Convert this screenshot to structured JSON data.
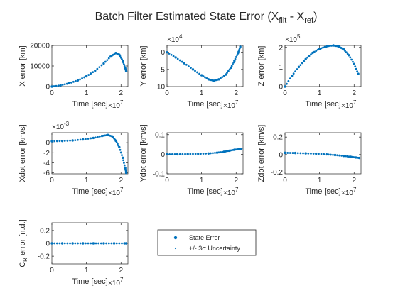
{
  "figure": {
    "title_main": "Batch Filter Estimated State Error (X",
    "title_sub1": "filt",
    "title_mid": " - X",
    "title_sub2": "ref",
    "title_end": ")"
  },
  "legend": {
    "entries": [
      {
        "label": "State Error",
        "color": "#0072BD",
        "marker": "large-dot"
      },
      {
        "label": "+/- 3σ Uncertainty",
        "color": "#0072BD",
        "marker": "small-dot"
      }
    ]
  },
  "chart_data": [
    {
      "type": "scatter",
      "id": "x",
      "ylabel": "X error [km]",
      "xlabel": "Time [sec]",
      "x_exponent": "×10",
      "x_exponent_power": "7",
      "xlim": [
        0,
        2.2
      ],
      "ylim": [
        0,
        20000
      ],
      "xticks": [
        0,
        1,
        2
      ],
      "xtick_labels": [
        "0",
        "1",
        "2"
      ],
      "yticks": [
        0,
        10000,
        20000
      ],
      "ytick_labels": [
        "0",
        "10000",
        "20000"
      ],
      "points": [
        [
          0,
          0
        ],
        [
          0.25,
          600
        ],
        [
          0.5,
          1600
        ],
        [
          0.75,
          3000
        ],
        [
          1.0,
          5000
        ],
        [
          1.25,
          7700
        ],
        [
          1.5,
          11200
        ],
        [
          1.7,
          14600
        ],
        [
          1.85,
          16300
        ],
        [
          1.95,
          15500
        ],
        [
          2.05,
          12500
        ],
        [
          2.12,
          9000
        ],
        [
          2.15,
          7500
        ]
      ]
    },
    {
      "type": "scatter",
      "id": "y",
      "ylabel": "Y error [km]",
      "xlabel": "Time [sec]",
      "x_exponent": "×10",
      "x_exponent_power": "7",
      "y_exponent": "×10",
      "y_exponent_power": "4",
      "xlim": [
        0,
        2.2
      ],
      "ylim": [
        -10,
        2
      ],
      "xticks": [
        0,
        1,
        2
      ],
      "xtick_labels": [
        "0",
        "1",
        "2"
      ],
      "yticks": [
        -10,
        -5,
        0
      ],
      "ytick_labels": [
        "-10",
        "-5",
        "0"
      ],
      "points": [
        [
          0,
          0
        ],
        [
          0.25,
          -1.5
        ],
        [
          0.5,
          -3.2
        ],
        [
          0.75,
          -5
        ],
        [
          1.0,
          -6.7
        ],
        [
          1.2,
          -7.9
        ],
        [
          1.35,
          -8.3
        ],
        [
          1.5,
          -7.9
        ],
        [
          1.7,
          -6.5
        ],
        [
          1.85,
          -4.5
        ],
        [
          1.95,
          -2.5
        ],
        [
          2.05,
          -0.3
        ],
        [
          2.12,
          1.6
        ]
      ]
    },
    {
      "type": "scatter",
      "id": "z",
      "ylabel": "Z error [km]",
      "xlabel": "Time [sec]",
      "x_exponent": "×10",
      "x_exponent_power": "7",
      "y_exponent": "×10",
      "y_exponent_power": "5",
      "xlim": [
        0,
        2.2
      ],
      "ylim": [
        0,
        2.1
      ],
      "xticks": [
        0,
        1,
        2
      ],
      "xtick_labels": [
        "0",
        "1",
        "2"
      ],
      "yticks": [
        0,
        1,
        2
      ],
      "ytick_labels": [
        "0",
        "1",
        "2"
      ],
      "points": [
        [
          0,
          0
        ],
        [
          0.2,
          0.55
        ],
        [
          0.4,
          1.0
        ],
        [
          0.6,
          1.4
        ],
        [
          0.8,
          1.72
        ],
        [
          1.0,
          1.93
        ],
        [
          1.2,
          2.05
        ],
        [
          1.4,
          2.1
        ],
        [
          1.55,
          2.05
        ],
        [
          1.7,
          1.9
        ],
        [
          1.85,
          1.6
        ],
        [
          2.0,
          1.15
        ],
        [
          2.12,
          0.65
        ]
      ]
    },
    {
      "type": "scatter",
      "id": "xdot",
      "ylabel": "Xdot error [km/s]",
      "xlabel": "Time [sec]",
      "x_exponent": "×10",
      "x_exponent_power": "7",
      "y_exponent": "×10",
      "y_exponent_power": "-3",
      "xlim": [
        0,
        2.2
      ],
      "ylim": [
        -6.2,
        2
      ],
      "xticks": [
        0,
        1,
        2
      ],
      "xtick_labels": [
        "0",
        "1",
        "2"
      ],
      "yticks": [
        -6,
        -4,
        -2,
        0
      ],
      "ytick_labels": [
        "-6",
        "-4",
        "-2",
        "0"
      ],
      "points": [
        [
          0,
          0.3
        ],
        [
          0.3,
          0.35
        ],
        [
          0.6,
          0.45
        ],
        [
          0.9,
          0.65
        ],
        [
          1.2,
          0.95
        ],
        [
          1.45,
          1.35
        ],
        [
          1.62,
          1.55
        ],
        [
          1.75,
          1.25
        ],
        [
          1.85,
          0.4
        ],
        [
          1.95,
          -0.9
        ],
        [
          2.05,
          -3.0
        ],
        [
          2.12,
          -5.0
        ],
        [
          2.15,
          -6.0
        ]
      ]
    },
    {
      "type": "scatter",
      "id": "ydot",
      "ylabel": "Ydot error [km/s]",
      "xlabel": "Time [sec]",
      "x_exponent": "×10",
      "x_exponent_power": "7",
      "xlim": [
        0,
        2.2
      ],
      "ylim": [
        -0.1,
        0.11
      ],
      "xticks": [
        0,
        1,
        2
      ],
      "xtick_labels": [
        "0",
        "1",
        "2"
      ],
      "yticks": [
        -0.1,
        0,
        0.1
      ],
      "ytick_labels": [
        "-0.1",
        "0",
        "0.1"
      ],
      "points": [
        [
          0,
          0
        ],
        [
          0.3,
          0
        ],
        [
          0.6,
          0.001
        ],
        [
          0.9,
          0.002
        ],
        [
          1.2,
          0.004
        ],
        [
          1.45,
          0.008
        ],
        [
          1.65,
          0.013
        ],
        [
          1.8,
          0.018
        ],
        [
          1.95,
          0.023
        ],
        [
          2.1,
          0.027
        ],
        [
          2.15,
          0.028
        ]
      ]
    },
    {
      "type": "scatter",
      "id": "zdot",
      "ylabel": "Zdot error [km/s]",
      "xlabel": "Time [sec]",
      "x_exponent": "×10",
      "x_exponent_power": "7",
      "xlim": [
        0,
        2.2
      ],
      "ylim": [
        -0.22,
        0.25
      ],
      "xticks": [
        0,
        1,
        2
      ],
      "xtick_labels": [
        "0",
        "1",
        "2"
      ],
      "yticks": [
        -0.2,
        0,
        0.2
      ],
      "ytick_labels": [
        "-0.2",
        "0",
        "0.2"
      ],
      "points": [
        [
          0,
          0.02
        ],
        [
          0.3,
          0.018
        ],
        [
          0.6,
          0.014
        ],
        [
          0.9,
          0.01
        ],
        [
          1.2,
          0.003
        ],
        [
          1.45,
          -0.005
        ],
        [
          1.7,
          -0.015
        ],
        [
          1.9,
          -0.025
        ],
        [
          2.05,
          -0.033
        ],
        [
          2.15,
          -0.038
        ]
      ]
    },
    {
      "type": "scatter",
      "id": "cr",
      "ylabel_main": "C",
      "ylabel_sub": "R",
      "ylabel_rest": " error [n.d.]",
      "xlabel": "Time [sec]",
      "x_exponent": "×10",
      "x_exponent_power": "7",
      "xlim": [
        0,
        2.2
      ],
      "ylim": [
        -0.32,
        0.32
      ],
      "xticks": [
        0,
        1,
        2
      ],
      "xtick_labels": [
        "0",
        "1",
        "2"
      ],
      "yticks": [
        -0.2,
        0,
        0.2
      ],
      "ytick_labels": [
        "-0.2",
        "0",
        "0.2"
      ],
      "points": [
        [
          0,
          0
        ],
        [
          0.3,
          0
        ],
        [
          0.6,
          0
        ],
        [
          0.9,
          0
        ],
        [
          1.2,
          0
        ],
        [
          1.5,
          0
        ],
        [
          1.8,
          0
        ],
        [
          2.1,
          0
        ],
        [
          2.15,
          0
        ]
      ]
    }
  ]
}
